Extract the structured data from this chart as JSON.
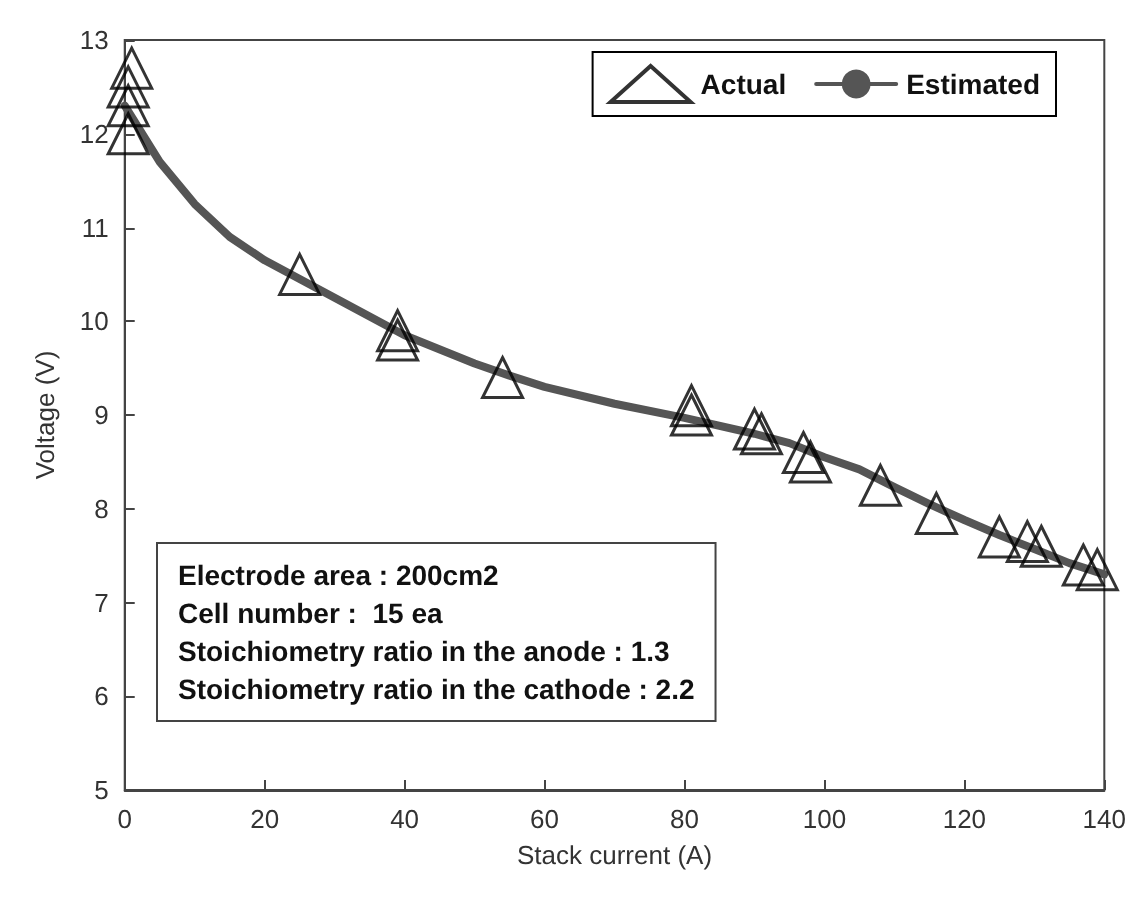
{
  "chart_data": {
    "type": "scatter",
    "xlabel": "Stack current (A)",
    "ylabel": "Voltage (V)",
    "xlim": [
      0,
      140
    ],
    "xticks": [
      0,
      20,
      40,
      60,
      80,
      100,
      120,
      140
    ],
    "ylim": [
      5,
      13
    ],
    "yticks": [
      5,
      6,
      7,
      8,
      9,
      10,
      11,
      12,
      13
    ],
    "grid": false,
    "legend": "top right",
    "series": [
      {
        "name": "Actual",
        "marker": "triangle",
        "color": "#000000",
        "x": [
          0.5,
          0.5,
          0.5,
          1,
          25,
          39,
          39,
          54,
          81,
          81,
          90,
          91,
          97,
          98,
          108,
          116,
          125,
          129,
          131,
          137,
          139
        ],
        "values": [
          12.0,
          12.3,
          12.5,
          12.7,
          10.5,
          9.9,
          9.8,
          9.4,
          9.1,
          9.0,
          8.85,
          8.8,
          8.6,
          8.5,
          8.25,
          7.95,
          7.7,
          7.65,
          7.6,
          7.4,
          7.35
        ]
      },
      {
        "name": "Estimated",
        "type": "line",
        "marker": "none",
        "line_style": "solid",
        "color": "#555555",
        "x": [
          0,
          5,
          10,
          15,
          20,
          25,
          30,
          40,
          50,
          55,
          60,
          70,
          80,
          90,
          95,
          100,
          105,
          110,
          115,
          120,
          125,
          130,
          135,
          140
        ],
        "values": [
          12.3,
          11.7,
          11.25,
          10.9,
          10.65,
          10.45,
          10.25,
          9.85,
          9.55,
          9.42,
          9.3,
          9.12,
          8.97,
          8.8,
          8.7,
          8.55,
          8.42,
          8.23,
          8.05,
          7.88,
          7.72,
          7.57,
          7.42,
          7.3
        ]
      }
    ],
    "annotations": [
      "Electrode area : 200cm2",
      "Cell number :  15 ea",
      "Stoichiometry ratio in the anode : 1.3",
      "Stoichiometry ratio in the cathode : 2.2"
    ]
  }
}
